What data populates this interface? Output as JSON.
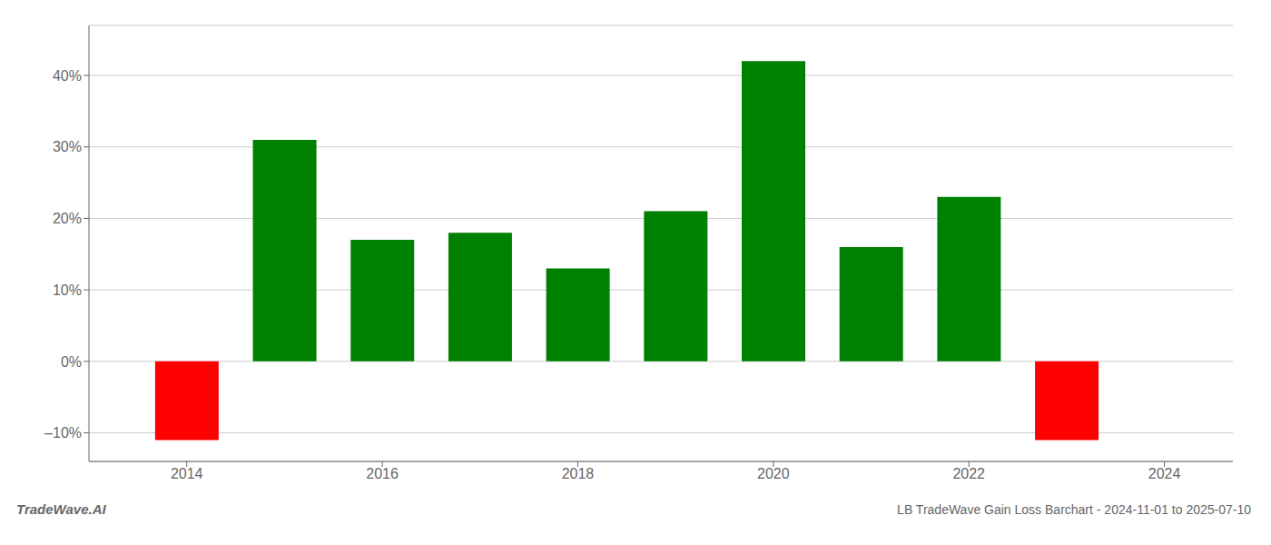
{
  "chart_data": {
    "type": "bar",
    "title": "LB TradeWave Gain Loss Barchart - 2024-11-01 to 2025-07-10",
    "annotations": [
      "TradeWave.AI"
    ],
    "x": [
      2014,
      2015,
      2016,
      2017,
      2018,
      2019,
      2020,
      2021,
      2022,
      2023
    ],
    "values": [
      -11.0,
      31.0,
      17.0,
      18.0,
      13.0,
      21.0,
      42.0,
      16.0,
      23.0,
      -11.0
    ],
    "colors": [
      "#ff0000",
      "#008000",
      "#008000",
      "#008000",
      "#008000",
      "#008000",
      "#008000",
      "#008000",
      "#008000",
      "#ff0000"
    ],
    "xlim": [
      2013.0,
      2024.7
    ],
    "xticks": [
      2014,
      2016,
      2018,
      2020,
      2022,
      2024
    ],
    "ylim": [
      -14,
      47
    ],
    "yticks": [
      {
        "value": -10,
        "label": "–10%"
      },
      {
        "value": 0,
        "label": "0%"
      },
      {
        "value": 10,
        "label": "10%"
      },
      {
        "value": 20,
        "label": "20%"
      },
      {
        "value": 30,
        "label": "30%"
      },
      {
        "value": 40,
        "label": "40%"
      }
    ],
    "grid": "y"
  }
}
